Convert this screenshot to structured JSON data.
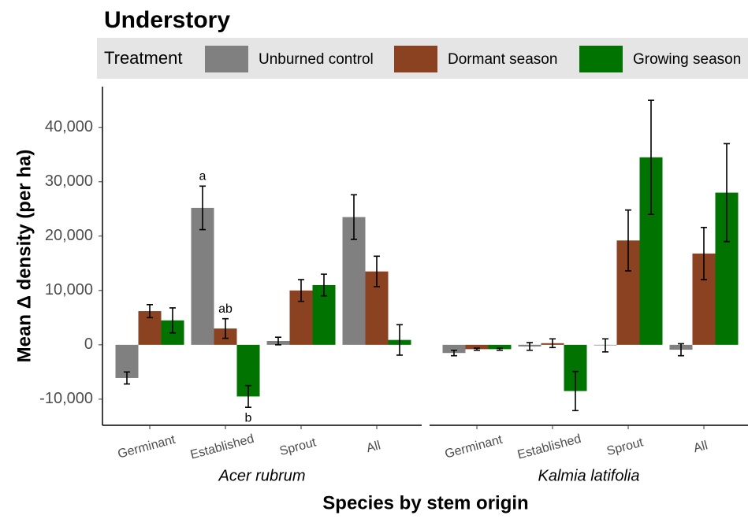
{
  "chart_data": {
    "type": "bar",
    "title": "Understory",
    "legend_title": "Treatment",
    "ylabel": "Mean Δ density (per ha)",
    "xlabel": "Species by stem origin",
    "categories": [
      "Germinant",
      "Established",
      "Sprout",
      "All"
    ],
    "series": [
      {
        "name": "Unburned control",
        "color": "#808080"
      },
      {
        "name": "Dormant season",
        "color": "#8b4220"
      },
      {
        "name": "Growing season",
        "color": "#007300"
      }
    ],
    "ylim": [
      -14800,
      47500
    ],
    "yticks": [
      {
        "value": -10000,
        "label": "-10,000"
      },
      0,
      {
        "value": 10000,
        "label": "10,000"
      },
      {
        "value": 20000,
        "label": "20,000"
      },
      {
        "value": 30000,
        "label": "30,000"
      },
      {
        "value": 40000,
        "label": "40,000"
      }
    ],
    "facets": [
      {
        "label": "Acer rubrum",
        "series": [
          {
            "values": [
              -6100,
              25200,
              700,
              23500
            ],
            "errors": [
              1100,
              4000,
              700,
              4100
            ],
            "annotations": [
              null,
              "a",
              null,
              null
            ]
          },
          {
            "values": [
              6200,
              3000,
              10000,
              13500
            ],
            "errors": [
              1200,
              1800,
              2000,
              2800
            ],
            "annotations": [
              null,
              "ab",
              null,
              null
            ]
          },
          {
            "values": [
              4500,
              -9500,
              11000,
              900
            ],
            "errors": [
              2300,
              2000,
              2000,
              2800
            ],
            "annotations": [
              null,
              "b",
              null,
              null
            ]
          }
        ]
      },
      {
        "label": "Kalmia latifolia",
        "series": [
          {
            "values": [
              -1500,
              -300,
              -100,
              -900
            ],
            "errors": [
              500,
              700,
              1200,
              1100
            ]
          },
          {
            "values": [
              -800,
              300,
              19200,
              16800
            ],
            "errors": [
              200,
              800,
              5600,
              4800
            ]
          },
          {
            "values": [
              -800,
              -8500,
              34500,
              28000
            ],
            "errors": [
              200,
              3600,
              10500,
              9000
            ]
          }
        ]
      }
    ]
  }
}
